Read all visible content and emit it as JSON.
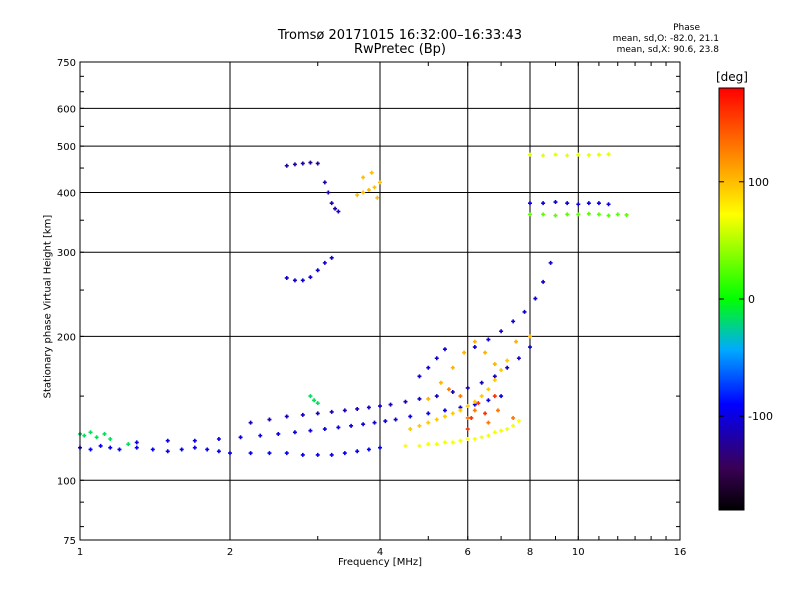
{
  "chart_data": {
    "type": "scatter",
    "title": "Tromsø 20171015 16:32:00–16:33:43",
    "subtitle": "RwPretec (Bp)",
    "xlabel": "Frequency [MHz]",
    "ylabel": "Stationary phase Virtual Height [km]",
    "x_scale": "log",
    "y_scale": "log",
    "xlim": [
      1,
      16
    ],
    "ylim": [
      75,
      750
    ],
    "x_ticks": [
      1,
      2,
      4,
      6,
      8,
      10,
      16
    ],
    "y_ticks": [
      75,
      100,
      200,
      300,
      400,
      500,
      600,
      750
    ],
    "grid": true,
    "colorbar": {
      "label": "[deg]",
      "range": [
        -180,
        180
      ],
      "ticks": [
        100,
        0,
        -100
      ]
    },
    "phase_stats": {
      "title": "Phase",
      "o_line": "mean, sd,O: -82.0, 21.1",
      "x_line": "mean, sd,X:  90.6, 23.8"
    },
    "series": [
      {
        "phase": -95,
        "points": [
          [
            1.0,
            117
          ],
          [
            1.05,
            116
          ],
          [
            1.1,
            118
          ],
          [
            1.15,
            117
          ],
          [
            1.2,
            116
          ],
          [
            1.3,
            117
          ],
          [
            1.4,
            116
          ],
          [
            1.5,
            115
          ],
          [
            1.6,
            116
          ],
          [
            1.7,
            117
          ],
          [
            1.8,
            116
          ],
          [
            1.9,
            115
          ],
          [
            2.0,
            114
          ],
          [
            2.2,
            114
          ],
          [
            2.4,
            114
          ],
          [
            2.6,
            114
          ],
          [
            2.8,
            113
          ],
          [
            3.0,
            113
          ],
          [
            3.2,
            113
          ],
          [
            3.4,
            114
          ],
          [
            3.6,
            115
          ],
          [
            3.8,
            116
          ],
          [
            4.0,
            117
          ]
        ]
      },
      {
        "phase": -100,
        "points": [
          [
            1.3,
            120
          ],
          [
            1.5,
            121
          ],
          [
            1.7,
            121
          ],
          [
            1.9,
            122
          ],
          [
            2.1,
            123
          ],
          [
            2.3,
            124
          ],
          [
            2.5,
            125
          ],
          [
            2.7,
            126
          ],
          [
            2.9,
            127
          ],
          [
            3.1,
            128
          ],
          [
            3.3,
            129
          ],
          [
            3.5,
            130
          ],
          [
            3.7,
            131
          ],
          [
            3.9,
            132
          ],
          [
            4.1,
            133
          ],
          [
            4.3,
            134
          ],
          [
            4.6,
            136
          ],
          [
            5.0,
            138
          ],
          [
            5.4,
            140
          ],
          [
            5.8,
            142
          ],
          [
            6.2,
            144
          ],
          [
            6.6,
            147
          ],
          [
            7.0,
            150
          ]
        ]
      },
      {
        "phase": -110,
        "points": [
          [
            2.2,
            132
          ],
          [
            2.4,
            134
          ],
          [
            2.6,
            136
          ],
          [
            2.8,
            137
          ],
          [
            3.0,
            138
          ],
          [
            3.2,
            139
          ],
          [
            3.4,
            140
          ],
          [
            3.6,
            141
          ],
          [
            3.8,
            142
          ],
          [
            4.0,
            143
          ],
          [
            4.2,
            144
          ],
          [
            4.5,
            146
          ],
          [
            4.8,
            148
          ],
          [
            5.2,
            150
          ],
          [
            5.6,
            153
          ],
          [
            6.0,
            156
          ],
          [
            6.4,
            160
          ],
          [
            6.8,
            165
          ],
          [
            7.2,
            172
          ],
          [
            7.6,
            180
          ],
          [
            8.0,
            190
          ]
        ]
      },
      {
        "phase": -120,
        "points": [
          [
            2.6,
            455
          ],
          [
            2.7,
            458
          ],
          [
            2.8,
            460
          ],
          [
            2.9,
            462
          ],
          [
            3.0,
            460
          ]
        ]
      },
      {
        "phase": -115,
        "points": [
          [
            3.1,
            420
          ],
          [
            3.15,
            400
          ],
          [
            3.2,
            380
          ],
          [
            3.25,
            370
          ],
          [
            3.3,
            365
          ]
        ]
      },
      {
        "phase": -105,
        "points": [
          [
            2.6,
            265
          ],
          [
            2.7,
            262
          ],
          [
            2.8,
            262
          ],
          [
            2.9,
            266
          ],
          [
            3.0,
            275
          ],
          [
            3.1,
            285
          ],
          [
            3.2,
            292
          ]
        ]
      },
      {
        "phase": -105,
        "points": [
          [
            4.8,
            165
          ],
          [
            5.0,
            172
          ],
          [
            5.2,
            180
          ],
          [
            5.4,
            188
          ],
          [
            6.2,
            190
          ],
          [
            6.6,
            197
          ],
          [
            7.0,
            205
          ],
          [
            7.4,
            215
          ],
          [
            7.8,
            225
          ],
          [
            8.2,
            240
          ],
          [
            8.5,
            260
          ],
          [
            8.8,
            285
          ]
        ]
      },
      {
        "phase": -100,
        "points": [
          [
            8.0,
            380
          ],
          [
            8.5,
            380
          ],
          [
            9.0,
            382
          ],
          [
            9.5,
            380
          ],
          [
            10.0,
            378
          ],
          [
            10.5,
            380
          ],
          [
            11.0,
            380
          ],
          [
            11.5,
            378
          ]
        ]
      },
      {
        "phase": -15,
        "points": [
          [
            1.0,
            125
          ],
          [
            1.02,
            124
          ],
          [
            1.05,
            126
          ],
          [
            1.08,
            123
          ],
          [
            1.12,
            125
          ],
          [
            1.15,
            122
          ],
          [
            1.25,
            119
          ],
          [
            2.9,
            150
          ],
          [
            2.95,
            147
          ],
          [
            3.0,
            145
          ]
        ]
      },
      {
        "phase": 25,
        "points": [
          [
            8.0,
            360
          ],
          [
            8.5,
            360
          ],
          [
            9.0,
            358
          ],
          [
            9.5,
            360
          ],
          [
            10.0,
            360
          ],
          [
            10.5,
            361
          ],
          [
            11.0,
            360
          ],
          [
            11.5,
            358
          ],
          [
            12.0,
            360
          ],
          [
            12.5,
            359
          ]
        ]
      },
      {
        "phase": 65,
        "points": [
          [
            8.0,
            480
          ],
          [
            8.5,
            478
          ],
          [
            9.0,
            480
          ],
          [
            9.5,
            478
          ],
          [
            10.0,
            480
          ],
          [
            10.5,
            479
          ],
          [
            11.0,
            480
          ],
          [
            11.5,
            481
          ]
        ]
      },
      {
        "phase": 70,
        "points": [
          [
            4.5,
            118
          ],
          [
            4.8,
            118
          ],
          [
            5.0,
            119
          ],
          [
            5.2,
            119
          ],
          [
            5.4,
            120
          ],
          [
            5.6,
            120
          ],
          [
            5.8,
            121
          ],
          [
            6.0,
            122
          ],
          [
            6.2,
            122
          ],
          [
            6.4,
            123
          ],
          [
            6.6,
            124
          ],
          [
            6.8,
            126
          ],
          [
            7.0,
            127
          ],
          [
            7.2,
            128
          ],
          [
            7.4,
            130
          ],
          [
            7.6,
            133
          ]
        ]
      },
      {
        "phase": 95,
        "points": [
          [
            4.6,
            128
          ],
          [
            4.8,
            130
          ],
          [
            5.0,
            132
          ],
          [
            5.2,
            134
          ],
          [
            5.4,
            136
          ],
          [
            5.6,
            138
          ],
          [
            5.8,
            140
          ],
          [
            6.0,
            143
          ],
          [
            6.2,
            146
          ],
          [
            6.4,
            150
          ],
          [
            6.6,
            155
          ],
          [
            6.8,
            162
          ],
          [
            7.0,
            170
          ],
          [
            7.2,
            178
          ]
        ]
      },
      {
        "phase": 100,
        "points": [
          [
            3.6,
            395
          ],
          [
            3.7,
            400
          ],
          [
            3.8,
            405
          ],
          [
            3.9,
            410
          ],
          [
            4.0,
            420
          ],
          [
            3.7,
            430
          ],
          [
            3.85,
            440
          ],
          [
            3.95,
            390
          ]
        ]
      },
      {
        "phase": 105,
        "points": [
          [
            5.0,
            148
          ],
          [
            5.3,
            160
          ],
          [
            5.6,
            172
          ],
          [
            5.9,
            185
          ],
          [
            6.2,
            195
          ],
          [
            6.5,
            185
          ],
          [
            6.8,
            175
          ],
          [
            7.5,
            195
          ],
          [
            8.0,
            200
          ]
        ]
      },
      {
        "phase": 130,
        "points": [
          [
            5.5,
            155
          ],
          [
            5.8,
            150
          ],
          [
            6.0,
            135
          ],
          [
            6.2,
            140
          ],
          [
            6.6,
            132
          ],
          [
            6.9,
            140
          ],
          [
            7.4,
            135
          ]
        ]
      },
      {
        "phase": 160,
        "points": [
          [
            6.0,
            128
          ],
          [
            6.1,
            135
          ],
          [
            6.3,
            145
          ],
          [
            6.5,
            138
          ],
          [
            6.8,
            150
          ]
        ]
      }
    ]
  }
}
